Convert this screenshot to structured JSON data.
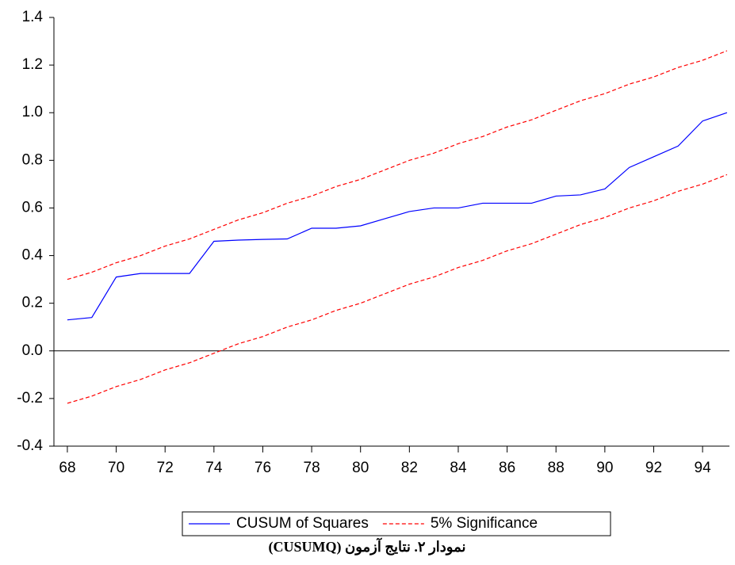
{
  "chart_data": {
    "type": "line",
    "caption": "نمودار ۲. نتایج آزمون (CUSUMQ)",
    "x": [
      68,
      69,
      70,
      71,
      72,
      73,
      74,
      75,
      76,
      77,
      78,
      79,
      80,
      81,
      82,
      83,
      84,
      85,
      86,
      87,
      88,
      89,
      90,
      91,
      92,
      93,
      94,
      95
    ],
    "series": [
      {
        "name": "CUSUM of Squares",
        "color": "#0000ff",
        "dashed": false,
        "values": [
          0.13,
          0.14,
          0.31,
          0.325,
          0.325,
          0.325,
          0.46,
          0.465,
          0.468,
          0.47,
          0.515,
          0.515,
          0.525,
          0.555,
          0.585,
          0.6,
          0.6,
          0.62,
          0.62,
          0.62,
          0.65,
          0.655,
          0.68,
          0.77,
          0.815,
          0.86,
          0.965,
          1.0
        ]
      },
      {
        "name": "5% Significance",
        "color": "#ff0000",
        "dashed": true,
        "values": [
          0.3,
          0.33,
          0.37,
          0.4,
          0.44,
          0.47,
          0.51,
          0.55,
          0.58,
          0.62,
          0.65,
          0.69,
          0.72,
          0.76,
          0.8,
          0.83,
          0.87,
          0.9,
          0.94,
          0.97,
          1.01,
          1.05,
          1.08,
          1.12,
          1.15,
          1.19,
          1.22,
          1.26
        ]
      },
      {
        "color": "#ff0000",
        "dashed": true,
        "values": [
          -0.22,
          -0.19,
          -0.15,
          -0.12,
          -0.08,
          -0.05,
          -0.01,
          0.03,
          0.06,
          0.1,
          0.13,
          0.17,
          0.2,
          0.24,
          0.28,
          0.31,
          0.35,
          0.38,
          0.42,
          0.45,
          0.49,
          0.53,
          0.56,
          0.6,
          0.63,
          0.67,
          0.7,
          0.74
        ]
      }
    ],
    "xlim": [
      67.45,
      95.1
    ],
    "xticks": [
      68,
      70,
      72,
      74,
      76,
      78,
      80,
      82,
      84,
      86,
      88,
      90,
      92,
      94
    ],
    "ylim": [
      -0.4,
      1.4
    ],
    "yticks": [
      -0.4,
      -0.2,
      {
        "value": 0,
        "label": "0.0"
      },
      0.2,
      0.4,
      0.6,
      0.8,
      {
        "value": 1,
        "label": "1.0"
      },
      1.2,
      1.4
    ],
    "zero_line": true
  }
}
